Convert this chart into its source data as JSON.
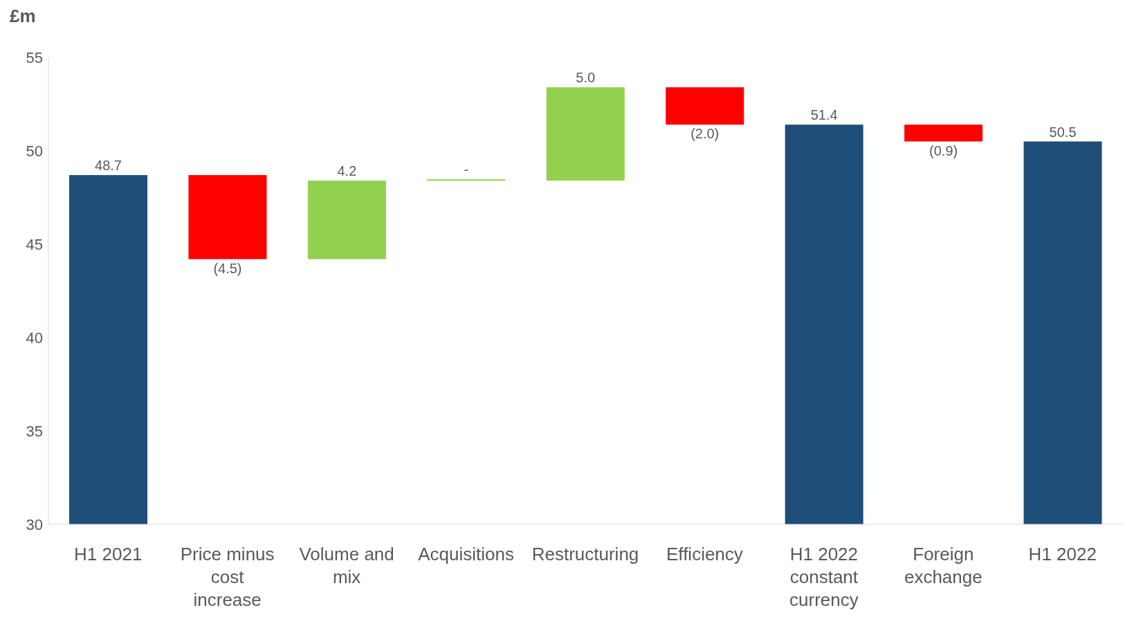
{
  "chart_data": {
    "type": "bar",
    "ylabel": "£m",
    "categories": [
      "H1 2021",
      "Price minus cost increase",
      "Volume and mix",
      "Acquisitions",
      "Restructuring",
      "Efficiency",
      "H1 2022 constant currency",
      "Foreign exchange",
      "H1 2022"
    ],
    "values": [
      48.7,
      -4.5,
      4.2,
      0,
      5.0,
      -2.0,
      51.4,
      -0.9,
      50.5
    ],
    "base": [
      null,
      48.7,
      44.2,
      48.4,
      48.4,
      53.4,
      null,
      51.4,
      null
    ],
    "colors": [
      "#1f4e79",
      "#ff0000",
      "#92d050",
      "#92d050",
      "#92d050",
      "#ff0000",
      "#1f4e79",
      "#ff0000",
      "#1f4e79"
    ],
    "value_labels": [
      "48.7",
      "(4.5)",
      "4.2",
      "-",
      "5.0",
      "(2.0)",
      "51.4",
      "(0.9)",
      "50.5"
    ],
    "ylim": [
      30,
      55
    ],
    "yticks": [
      30,
      35,
      40,
      45,
      50,
      55
    ],
    "grid": false,
    "legend": false
  }
}
